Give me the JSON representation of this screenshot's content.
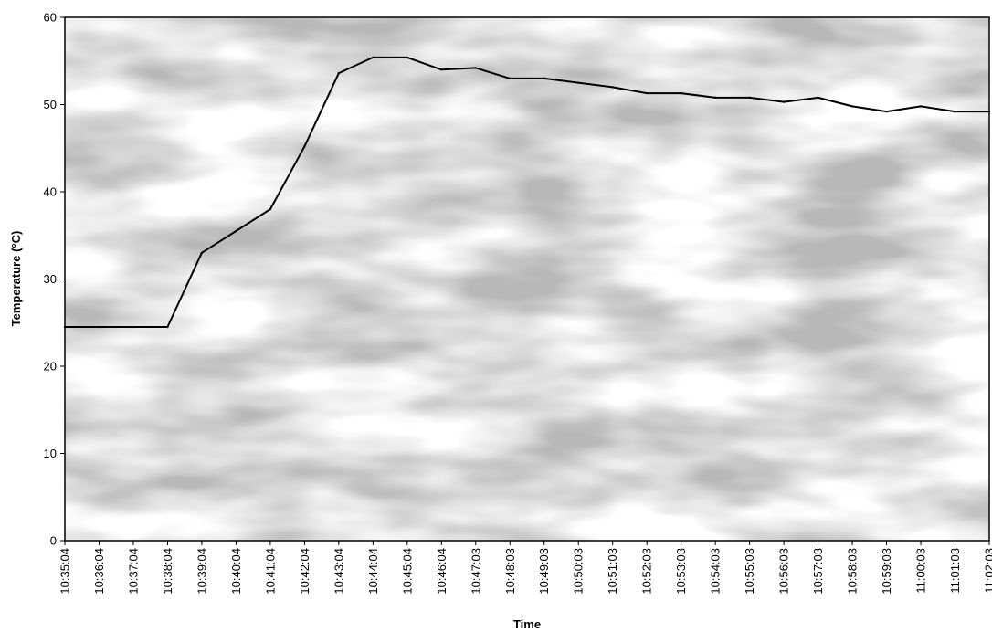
{
  "chart_data": {
    "type": "line",
    "title": "",
    "xlabel": "Time",
    "ylabel": "Temperature (°C)",
    "ylim": [
      0,
      60
    ],
    "yticks": [
      0,
      10,
      20,
      30,
      40,
      50,
      60
    ],
    "grid": false,
    "legend": "none",
    "background": "stippled gray plot area",
    "colors": {
      "line": "#000000",
      "plot_texture": "#b5b5b5",
      "axis": "#000000"
    },
    "categories": [
      "10:35:04",
      "10:36:04",
      "10:37:04",
      "10:38:04",
      "10:39:04",
      "10:40:04",
      "10:41:04",
      "10:42:04",
      "10:43:04",
      "10:44:04",
      "10:45:04",
      "10:46:04",
      "10:47:03",
      "10:48:03",
      "10:49:03",
      "10:50:03",
      "10:51:03",
      "10:52:03",
      "10:53:03",
      "10:54:03",
      "10:55:03",
      "10:56:03",
      "10:57:03",
      "10:58:03",
      "10:59:03",
      "11:00:03",
      "11:01:03",
      "11:02:03"
    ],
    "series": [
      {
        "values": [
          24.5,
          24.5,
          24.5,
          24.5,
          33,
          35.5,
          38,
          45.2,
          53.6,
          55.4,
          55.4,
          54,
          54.2,
          53,
          53,
          52.5,
          52,
          51.3,
          51.3,
          50.8,
          50.8,
          50.3,
          50.8,
          49.8,
          49.2,
          49.8,
          49.2,
          49.2
        ]
      }
    ]
  }
}
